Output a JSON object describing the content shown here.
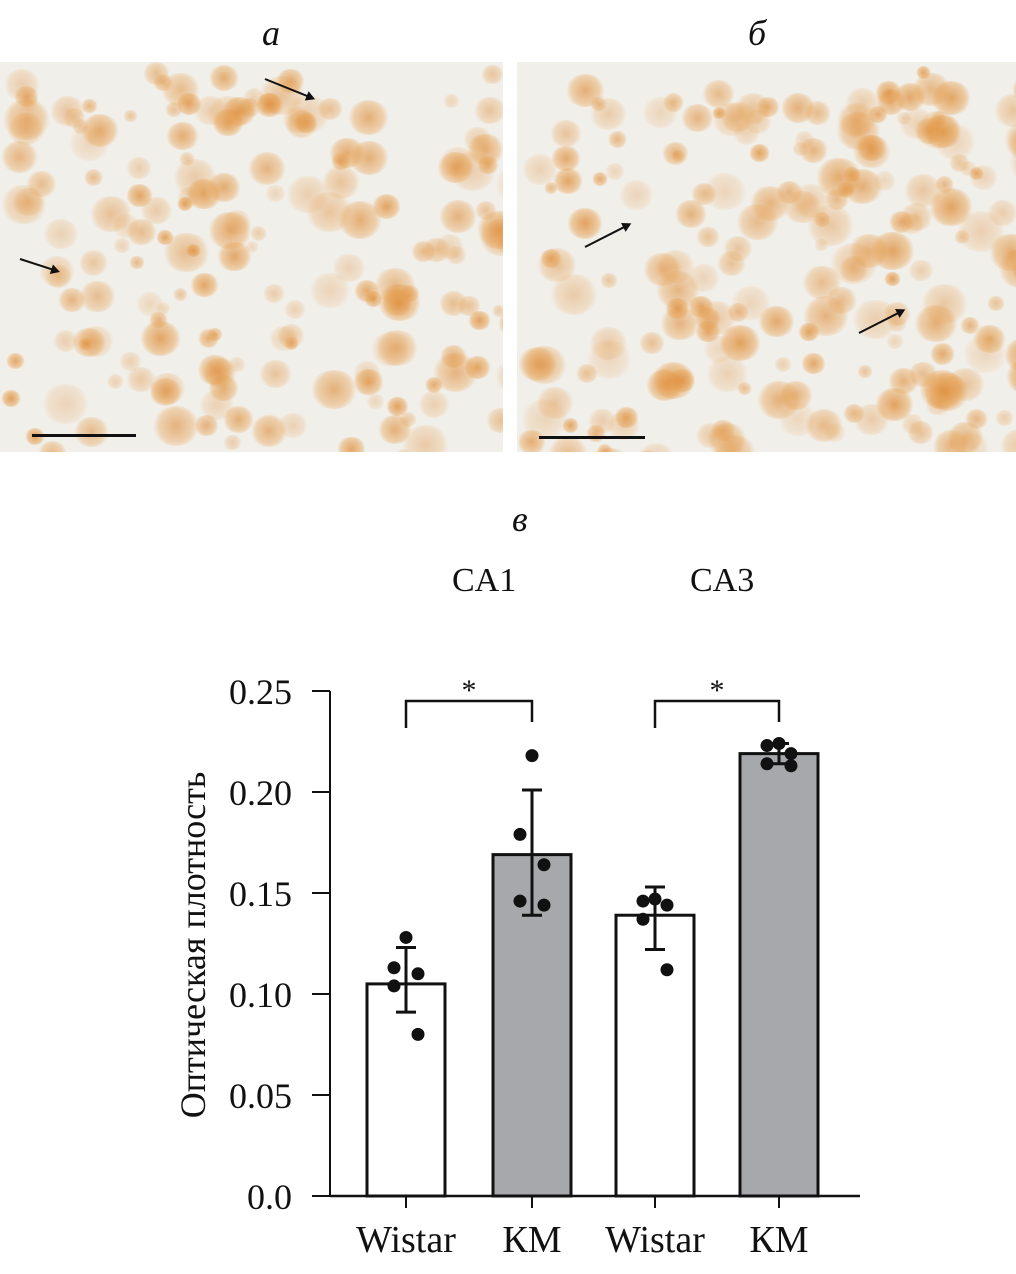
{
  "panels": {
    "a_label": "а",
    "b_label": "б",
    "c_label": "в"
  },
  "regions": [
    "CA1",
    "CA3"
  ],
  "chart_data": {
    "type": "bar",
    "title": "",
    "ylabel": "Оптическая плотность",
    "xlabel": "",
    "ylim": [
      0,
      0.25
    ],
    "yticks": [
      "0.0",
      "0.05",
      "0.10",
      "0.15",
      "0.20",
      "0.25"
    ],
    "ytick_values": [
      0,
      0.05,
      0.1,
      0.15,
      0.2,
      0.25
    ],
    "groups": [
      "CA1",
      "CA3"
    ],
    "categories": [
      "Wistar",
      "КМ",
      "Wistar",
      "КМ"
    ],
    "values": [
      0.105,
      0.169,
      0.139,
      0.219
    ],
    "error_low": [
      0.091,
      0.139,
      0.122,
      0.214
    ],
    "error_high": [
      0.123,
      0.201,
      0.153,
      0.224
    ],
    "points": [
      [
        0.128,
        0.113,
        0.11,
        0.104,
        0.08
      ],
      [
        0.218,
        0.179,
        0.164,
        0.146,
        0.144
      ],
      [
        0.147,
        0.146,
        0.144,
        0.137,
        0.112
      ],
      [
        0.224,
        0.223,
        0.219,
        0.214,
        0.213
      ]
    ],
    "bar_colors": [
      "#ffffff",
      "#a7a8ab",
      "#ffffff",
      "#a7a8ab"
    ],
    "significance": [
      {
        "between": [
          0,
          1
        ],
        "label": "*"
      },
      {
        "between": [
          2,
          3
        ],
        "label": "*"
      }
    ]
  }
}
